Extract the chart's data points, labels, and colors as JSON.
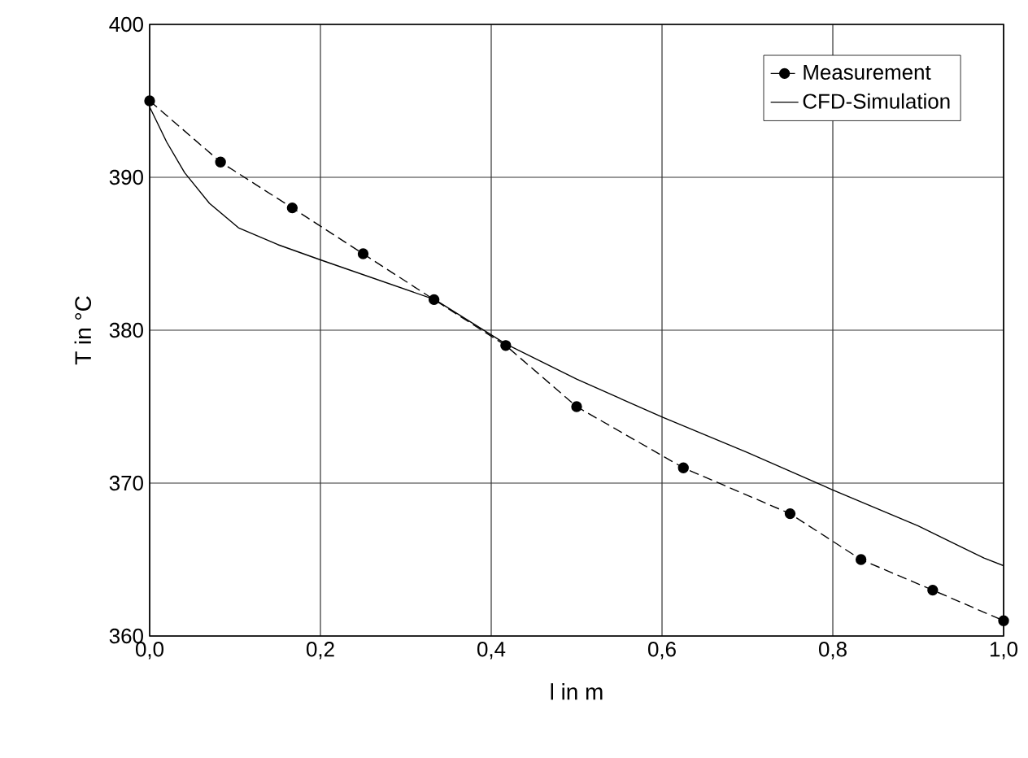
{
  "chart_data": {
    "type": "line",
    "xlabel": "l in m",
    "ylabel": "T in °C",
    "xlim": [
      0,
      1
    ],
    "ylim": [
      360,
      400
    ],
    "xticks": [
      {
        "value": 0,
        "label": "0,0"
      },
      {
        "value": 0.2,
        "label": "0,2"
      },
      {
        "value": 0.4,
        "label": "0,4"
      },
      {
        "value": 0.6,
        "label": "0,6"
      },
      {
        "value": 0.8,
        "label": "0,8"
      },
      {
        "value": 1,
        "label": "1,0"
      }
    ],
    "yticks": [
      360,
      370,
      380,
      390,
      400
    ],
    "grid": true,
    "legend": "top right",
    "series": [
      {
        "name": "Measurement",
        "color": "#000000",
        "marker": "circle",
        "line_style": "dashed",
        "x": [
          0,
          0.083,
          0.167,
          0.25,
          0.333,
          0.417,
          0.5,
          0.625,
          0.75,
          0.833,
          0.917,
          1.0
        ],
        "values": [
          395,
          391,
          388,
          385,
          382,
          379,
          375,
          371,
          368,
          365,
          363,
          361
        ]
      },
      {
        "name": "CFD-Simulation",
        "color": "#000000",
        "marker": "none",
        "line_style": "solid",
        "x": [
          0,
          0.02,
          0.041,
          0.07,
          0.104,
          0.15,
          0.2,
          0.334,
          0.417,
          0.5,
          0.601,
          0.7,
          0.802,
          0.9,
          0.951,
          0.977,
          1.0
        ],
        "values": [
          394.6,
          392.3,
          390.3,
          388.3,
          386.7,
          385.6,
          384.6,
          382.0,
          379.1,
          376.8,
          374.3,
          372.0,
          369.5,
          367.2,
          365.8,
          365.1,
          364.6
        ]
      }
    ]
  }
}
